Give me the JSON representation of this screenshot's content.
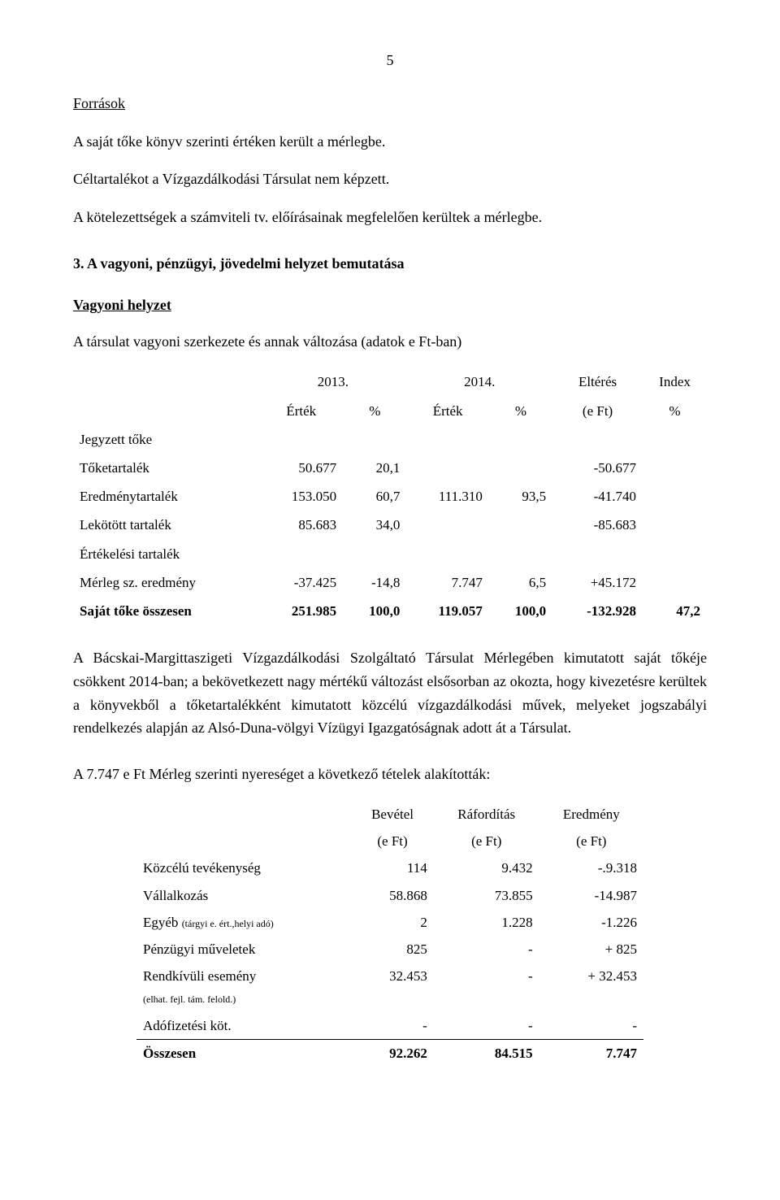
{
  "page_number": "5",
  "sections": {
    "forrasok_heading": "Források",
    "forrasok_p1": "A saját tőke könyv szerinti értéken került a mérlegbe.",
    "forrasok_p2": "Céltartalékot a Vízgazdálkodási Társulat nem képzett.",
    "forrasok_p3": "A kötelezettségek a számviteli tv. előírásainak megfelelően kerültek a mérlegbe.",
    "vagyoni_heading": "3. A vagyoni, pénzügyi, jövedelmi helyzet bemutatása",
    "vagyoni_subheading": "Vagyoni helyzet",
    "vagyoni_intro": "A társulat vagyoni szerkezete és annak változása (adatok e Ft-ban)"
  },
  "table1": {
    "type": "table",
    "font_size": 17,
    "header_top": {
      "c1": "",
      "c2": "2013.",
      "c3": "2014.",
      "c4": "Eltérés",
      "c5": "Index"
    },
    "header_sub": {
      "c1": "",
      "c2": "Érték",
      "c3": "%",
      "c4": "Érték",
      "c5": "%",
      "c6": "(e Ft)",
      "c7": "%"
    },
    "rows": [
      {
        "label": "Jegyzett tőke",
        "v2013": "",
        "p2013": "",
        "v2014": "",
        "p2014": "",
        "diff": "",
        "idx": ""
      },
      {
        "label": "Tőketartalék",
        "v2013": "50.677",
        "p2013": "20,1",
        "v2014": "",
        "p2014": "",
        "diff": "-50.677",
        "idx": ""
      },
      {
        "label": "Eredménytartalék",
        "v2013": "153.050",
        "p2013": "60,7",
        "v2014": "111.310",
        "p2014": "93,5",
        "diff": "-41.740",
        "idx": ""
      },
      {
        "label": "Lekötött tartalék",
        "v2013": "85.683",
        "p2013": "34,0",
        "v2014": "",
        "p2014": "",
        "diff": "-85.683",
        "idx": ""
      },
      {
        "label": "Értékelési tartalék",
        "v2013": "",
        "p2013": "",
        "v2014": "",
        "p2014": "",
        "diff": "",
        "idx": ""
      },
      {
        "label": "Mérleg sz. eredmény",
        "v2013": "-37.425",
        "p2013": "-14,8",
        "v2014": "7.747",
        "p2014": "6,5",
        "diff": "+45.172",
        "idx": ""
      }
    ],
    "total": {
      "label": "Saját tőke összesen",
      "v2013": "251.985",
      "p2013": "100,0",
      "v2014": "119.057",
      "p2014": "100,0",
      "diff": "-132.928",
      "idx": "47,2"
    }
  },
  "narrative": {
    "p1": "A Bácskai-Margittaszigeti Vízgazdálkodási Szolgáltató Társulat Mérlegében kimutatott saját tőkéje csökkent 2014-ban; a bekövetkezett nagy mértékű változást elsősorban az okozta, hogy kivezetésre kerültek a könyvekből a tőketartalékként kimutatott közcélú vízgazdálkodási művek, melyeket jogszabályi rendelkezés alapján az Alsó-Duna-völgyi Vízügyi Igazgatóságnak adott át a Társulat.",
    "p2": "A 7.747 e Ft Mérleg szerinti nyereséget a következő tételek alakították:"
  },
  "table2": {
    "type": "table",
    "font_size": 17,
    "header_top": {
      "c1": "",
      "c2": "Bevétel",
      "c3": "Ráfordítás",
      "c4": "Eredmény"
    },
    "header_sub": {
      "c1": "",
      "c2": "(e Ft)",
      "c3": "(e Ft)",
      "c4": "(e Ft)"
    },
    "rows": [
      {
        "label": "Közcélú tevékenység",
        "bev": "114",
        "raf": "9.432",
        "ered": "-.9.318"
      },
      {
        "label": "Vállalkozás",
        "bev": "58.868",
        "raf": "73.855",
        "ered": "-14.987"
      },
      {
        "label": "Egyéb ",
        "label_small": "(tárgyi e. ért.,helyi adó)",
        "bev": "2",
        "raf": "1.228",
        "ered": "-1.226"
      },
      {
        "label": "Pénzügyi műveletek",
        "bev": "825",
        "raf": "-",
        "ered": "+ 825"
      },
      {
        "label": "Rendkívüli esemény",
        "label_small2": "(elhat. fejl. tám. felold.)",
        "bev": "32.453",
        "raf": "-",
        "ered": "+ 32.453"
      },
      {
        "label": "Adófizetési köt.",
        "bev": "-",
        "raf": "-",
        "ered": "-"
      }
    ],
    "total": {
      "label": "Összesen",
      "bev": "92.262",
      "raf": "84.515",
      "ered": "7.747"
    }
  },
  "colors": {
    "text": "#000000",
    "background": "#ffffff"
  }
}
